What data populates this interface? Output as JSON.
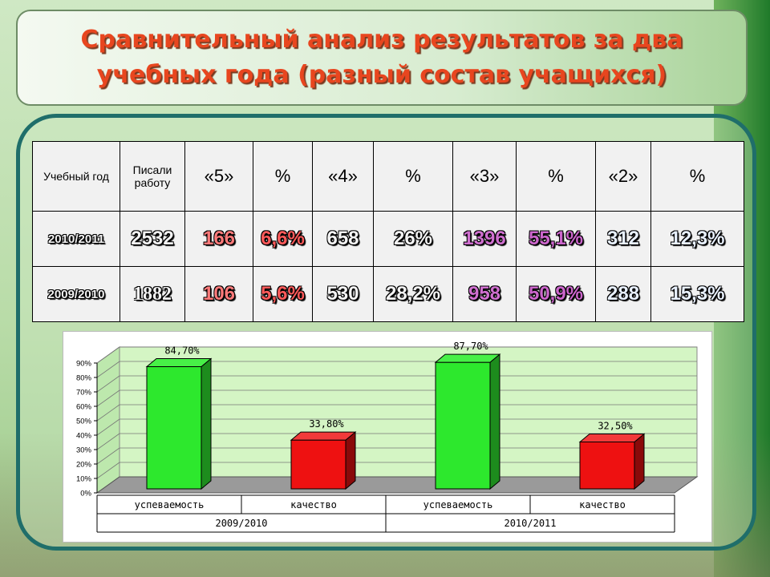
{
  "title_line1": "Сравнительный анализ результатов за два",
  "title_line2": "учебных года (разный состав учащихся)",
  "colors": {
    "title": "#e8461f",
    "frame": "#1f6e6a",
    "bar_green": "#2de82d",
    "bar_red": "#ee1111"
  },
  "table": {
    "headers": [
      "Учебный год",
      "Писали работу",
      "«5»",
      "%",
      "«4»",
      "%",
      "«3»",
      "%",
      "«2»",
      "%"
    ],
    "rows": [
      {
        "year": "2010/2011",
        "wrote": "2532",
        "g5": "166",
        "p5": "6,6%",
        "g4": "658",
        "p4": "26%",
        "g3": "1396",
        "p3": "55,1%",
        "g2": "312",
        "p2": "12,3%"
      },
      {
        "year": "2009/2010",
        "wrote": "1882",
        "g5": "106",
        "p5": "5,6%",
        "g4": "530",
        "p4": "28,2%",
        "g3": "958",
        "p3": "50,9%",
        "g2": "288",
        "p2": "15,3%"
      }
    ]
  },
  "chart_data": {
    "type": "bar",
    "y_ticks": [
      "0%",
      "10%",
      "20%",
      "30%",
      "40%",
      "50%",
      "60%",
      "70%",
      "80%",
      "90%"
    ],
    "ylim": [
      0,
      90
    ],
    "groups": [
      "2009/2010",
      "2010/2011"
    ],
    "categories": [
      "успеваемость",
      "качество",
      "успеваемость",
      "качество"
    ],
    "values": [
      84.7,
      33.8,
      87.7,
      32.5
    ],
    "value_labels": [
      "84,70%",
      "33,80%",
      "87,70%",
      "32,50%"
    ],
    "bar_colors": [
      "green",
      "red",
      "green",
      "red"
    ],
    "grid": true
  }
}
